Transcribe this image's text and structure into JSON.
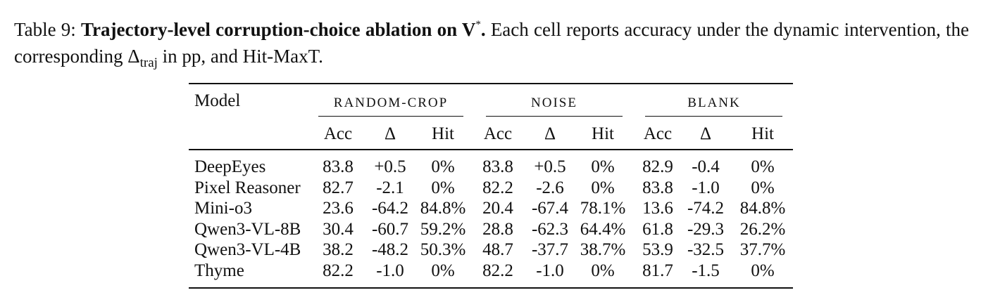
{
  "caption": {
    "label": "Table 9:",
    "title_a": "Trajectory-level corruption-choice ablation on V",
    "title_sup": "*",
    "title_end": ".",
    "text_a": "Each cell reports accuracy under the dynamic intervention, the corresponding ",
    "delta": "Δ",
    "delta_sub": "traj",
    "text_b": " in pp, and Hit-MaxT."
  },
  "table": {
    "model_header": "Model",
    "groups": [
      "RANDOM-CROP",
      "NOISE",
      "BLANK"
    ],
    "subheaders": [
      "Acc",
      "Δ",
      "Hit",
      "Acc",
      "Δ",
      "Hit",
      "Acc",
      "Δ",
      "Hit"
    ],
    "rows": [
      {
        "model": "DeepEyes",
        "cells": [
          "83.8",
          "+0.5",
          "0%",
          "83.8",
          "+0.5",
          "0%",
          "82.9",
          "-0.4",
          "0%"
        ]
      },
      {
        "model": "Pixel Reasoner",
        "cells": [
          "82.7",
          "-2.1",
          "0%",
          "82.2",
          "-2.6",
          "0%",
          "83.8",
          "-1.0",
          "0%"
        ]
      },
      {
        "model": "Mini-o3",
        "cells": [
          "23.6",
          "-64.2",
          "84.8%",
          "20.4",
          "-67.4",
          "78.1%",
          "13.6",
          "-74.2",
          "84.8%"
        ]
      },
      {
        "model": "Qwen3-VL-8B",
        "cells": [
          "30.4",
          "-60.7",
          "59.2%",
          "28.8",
          "-62.3",
          "64.4%",
          "61.8",
          "-29.3",
          "26.2%"
        ]
      },
      {
        "model": "Qwen3-VL-4B",
        "cells": [
          "38.2",
          "-48.2",
          "50.3%",
          "48.7",
          "-37.7",
          "38.7%",
          "53.9",
          "-32.5",
          "37.7%"
        ]
      },
      {
        "model": "Thyme",
        "cells": [
          "82.2",
          "-1.0",
          "0%",
          "82.2",
          "-1.0",
          "0%",
          "81.7",
          "-1.5",
          "0%"
        ]
      }
    ]
  }
}
